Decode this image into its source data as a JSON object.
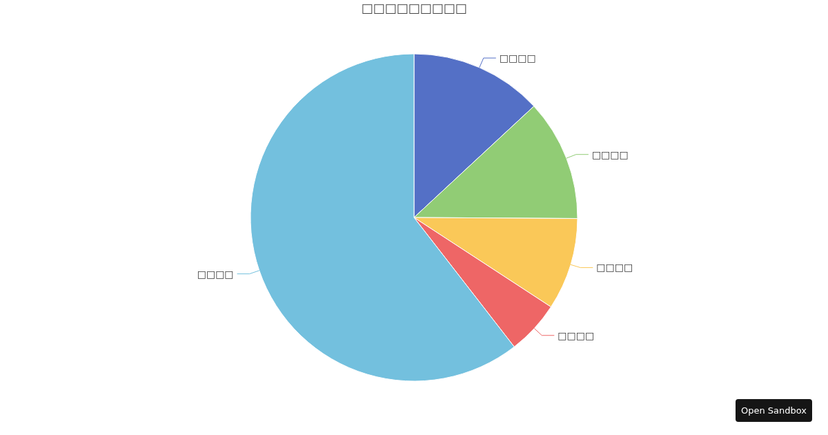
{
  "chart_data": {
    "type": "pie",
    "title": "□□□□□□□□□",
    "categories": [
      "□□□□",
      "□□□□",
      "□□□□",
      "□□□□",
      "□□□□"
    ],
    "values": [
      13.1,
      12.0,
      9.1,
      5.3,
      60.5
    ],
    "colors": [
      "#5470c6",
      "#91cc75",
      "#fac858",
      "#ee6666",
      "#73c0de"
    ],
    "legend": false,
    "annotations": [
      "Open Sandbox"
    ]
  }
}
